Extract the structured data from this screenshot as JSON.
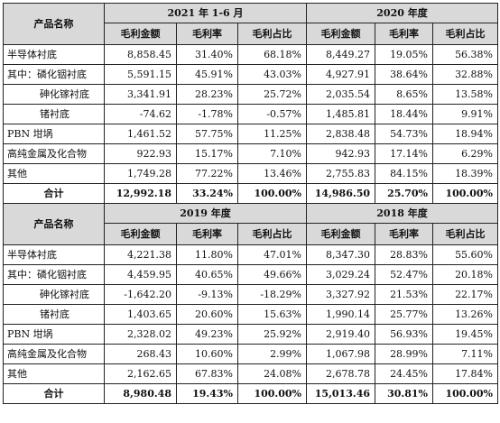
{
  "header_top": {
    "product_label": "产品名称",
    "period_left": "2021 年 1-6 月",
    "period_right": "2020 年度"
  },
  "header_bottom": {
    "product_label": "产品名称",
    "period_left": "2019 年度",
    "period_right": "2018 年度"
  },
  "columns": [
    "毛利金额",
    "毛利率",
    "毛利占比",
    "毛利金额",
    "毛利率",
    "毛利占比"
  ],
  "rows_top": [
    {
      "name": "半导体衬底",
      "values": [
        "8,858.45",
        "31.40%",
        "68.18%",
        "8,449.27",
        "19.05%",
        "56.38%"
      ]
    },
    {
      "name": "其中：磷化铟衬底",
      "values": [
        "5,591.15",
        "45.91%",
        "43.03%",
        "4,927.91",
        "38.64%",
        "32.88%"
      ]
    },
    {
      "name": "砷化镓衬底",
      "values": [
        "3,341.91",
        "28.23%",
        "25.72%",
        "2,035.54",
        "8.65%",
        "13.58%"
      ]
    },
    {
      "name": "锗衬底",
      "values": [
        "-74.62",
        "-1.78%",
        "-0.57%",
        "1,485.81",
        "18.44%",
        "9.91%"
      ]
    },
    {
      "name": "PBN 坩埚",
      "values": [
        "1,461.52",
        "57.75%",
        "11.25%",
        "2,838.48",
        "54.73%",
        "18.94%"
      ]
    },
    {
      "name": "高纯金属及化合物",
      "values": [
        "922.93",
        "15.17%",
        "7.10%",
        "942.93",
        "17.14%",
        "6.29%"
      ]
    },
    {
      "name": "其他",
      "values": [
        "1,749.28",
        "77.22%",
        "13.46%",
        "2,755.83",
        "84.15%",
        "18.39%"
      ]
    }
  ],
  "total_top": {
    "name": "合计",
    "values": [
      "12,992.18",
      "33.24%",
      "100.00%",
      "14,986.50",
      "25.70%",
      "100.00%"
    ]
  },
  "rows_bottom": [
    {
      "name": "半导体衬底",
      "values": [
        "4,221.38",
        "11.80%",
        "47.01%",
        "8,347.30",
        "28.83%",
        "55.60%"
      ]
    },
    {
      "name": "其中：磷化铟衬底",
      "values": [
        "4,459.95",
        "40.65%",
        "49.66%",
        "3,029.24",
        "52.47%",
        "20.18%"
      ]
    },
    {
      "name": "砷化镓衬底",
      "values": [
        "-1,642.20",
        "-9.13%",
        "-18.29%",
        "3,327.92",
        "21.53%",
        "22.17%"
      ]
    },
    {
      "name": "锗衬底",
      "values": [
        "1,403.65",
        "20.60%",
        "15.63%",
        "1,990.14",
        "25.77%",
        "13.26%"
      ]
    },
    {
      "name": "PBN 坩埚",
      "values": [
        "2,328.02",
        "49.23%",
        "25.92%",
        "2,919.40",
        "56.93%",
        "19.45%"
      ]
    },
    {
      "name": "高纯金属及化合物",
      "values": [
        "268.43",
        "10.60%",
        "2.99%",
        "1,067.98",
        "28.99%",
        "7.11%"
      ]
    },
    {
      "name": "其他",
      "values": [
        "2,162.65",
        "67.83%",
        "24.08%",
        "2,678.78",
        "24.45%",
        "17.84%"
      ]
    }
  ],
  "total_bottom": {
    "name": "合计",
    "values": [
      "8,980.48",
      "19.43%",
      "100.00%",
      "15,013.46",
      "30.81%",
      "100.00%"
    ]
  }
}
